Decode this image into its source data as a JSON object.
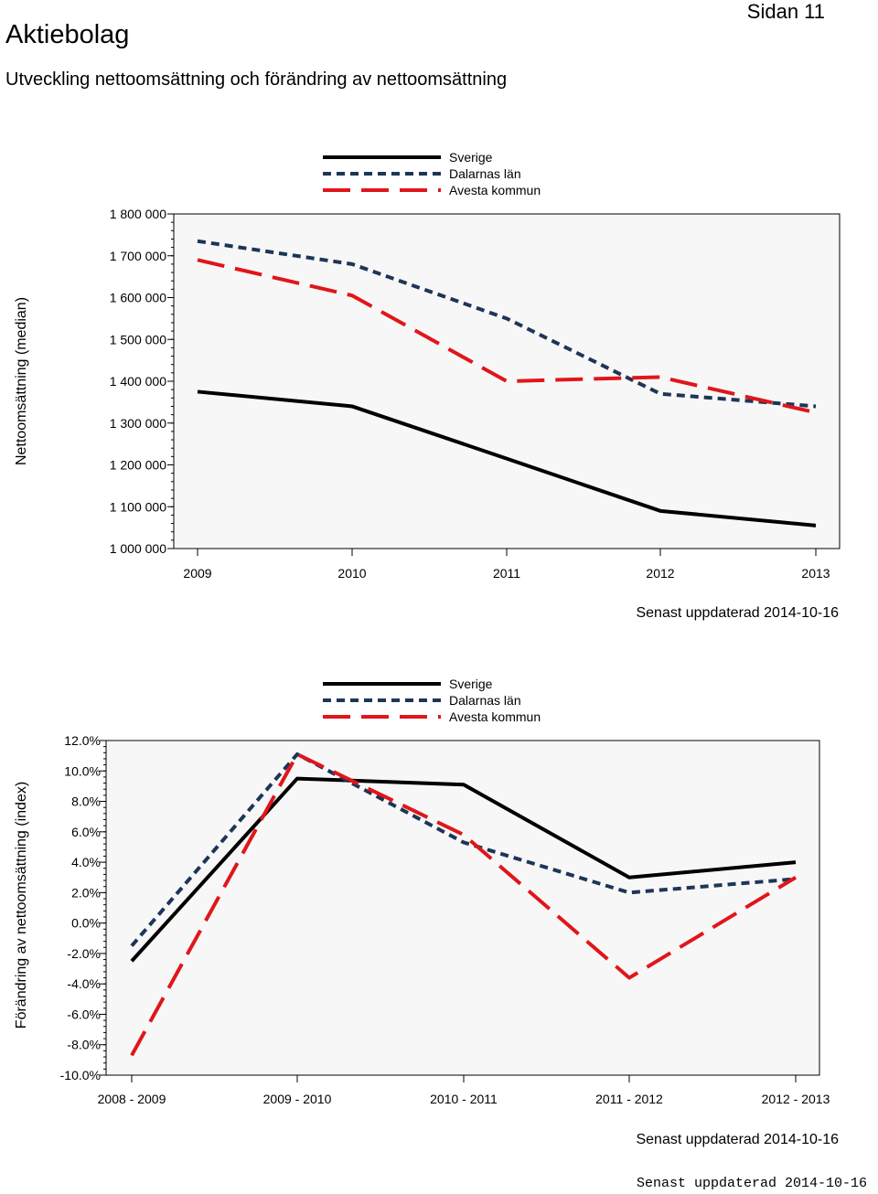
{
  "header": {
    "title": "Aktiebolag",
    "page": "Sidan 11",
    "subtitle": "Utveckling nettoomsättning och förändring av nettoomsättning"
  },
  "footer": {
    "updated_chart1": "Senast uppdaterad 2014-10-16",
    "updated_chart2": "Senast uppdaterad 2014-10-16",
    "updated_page": "Senast uppdaterad 2014-10-16"
  },
  "colors": {
    "sverige": "#000000",
    "dalarna": "#1d3557",
    "avesta": "#e0161a",
    "plot_bg": "#f7f7f7"
  },
  "chart_data": [
    {
      "type": "line",
      "title": "",
      "xlabel": "",
      "ylabel": "Nettoomsättning (median)",
      "categories": [
        "2009",
        "2010",
        "2011",
        "2012",
        "2013"
      ],
      "ylim": [
        1000000,
        1800000
      ],
      "yticks": [
        1000000,
        1100000,
        1200000,
        1300000,
        1400000,
        1500000,
        1600000,
        1700000,
        1800000
      ],
      "ytick_labels": [
        "1 000 000",
        "1 100 000",
        "1 200 000",
        "1 300 000",
        "1 400 000",
        "1 500 000",
        "1 600 000",
        "1 700 000",
        "1 800 000"
      ],
      "legend_position": "top",
      "series": [
        {
          "name": "Sverige",
          "style": "solid",
          "values": [
            1375000,
            1340000,
            1215000,
            1090000,
            1055000
          ]
        },
        {
          "name": "Dalarnas län",
          "style": "dash-dot",
          "values": [
            1735000,
            1680000,
            1550000,
            1370000,
            1340000
          ]
        },
        {
          "name": "Avesta kommun",
          "style": "long-dash",
          "values": [
            1690000,
            1605000,
            1400000,
            1410000,
            1325000
          ]
        }
      ]
    },
    {
      "type": "line",
      "title": "",
      "xlabel": "",
      "ylabel": "Förändring av nettoomsättning (index)",
      "categories": [
        "2008 - 2009",
        "2009 - 2010",
        "2010 - 2011",
        "2011 - 2012",
        "2012 - 2013"
      ],
      "ylim": [
        -10,
        12
      ],
      "yticks": [
        -10,
        -8,
        -6,
        -4,
        -2,
        0,
        2,
        4,
        6,
        8,
        10,
        12
      ],
      "ytick_labels": [
        "-10.0%",
        "-8.0%",
        "-6.0%",
        "-4.0%",
        "-2.0%",
        "0.0%",
        "2.0%",
        "4.0%",
        "6.0%",
        "8.0%",
        "10.0%",
        "12.0%"
      ],
      "legend_position": "top",
      "series": [
        {
          "name": "Sverige",
          "style": "solid",
          "values": [
            -2.5,
            9.5,
            9.1,
            3.0,
            4.0
          ]
        },
        {
          "name": "Dalarnas län",
          "style": "dash-dot",
          "values": [
            -1.5,
            11.1,
            5.3,
            2.0,
            2.9
          ]
        },
        {
          "name": "Avesta kommun",
          "style": "long-dash",
          "values": [
            -8.7,
            11.1,
            5.8,
            -3.6,
            3.0
          ]
        }
      ]
    }
  ]
}
